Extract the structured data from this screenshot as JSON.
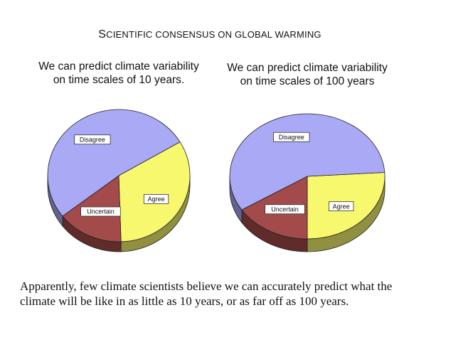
{
  "title_parts": {
    "s_cap": "S",
    "rest": "CIENTIFIC CONSENSUS ON GLOBAL WARMING"
  },
  "caption": "Apparently, few climate scientists believe we can accurately predict what the climate will be like in as little as 10 years, or as far off as 100 years.",
  "colors": {
    "disagree": "#a9a9f6",
    "uncertain": "#a34a4a",
    "agree": "#f8f86e"
  },
  "chart_data": [
    {
      "type": "pie",
      "title": "We can predict climate variability on time scales of 10 years.",
      "labels": [
        "Disagree",
        "Uncertain",
        "Agree"
      ],
      "values": [
        52,
        15,
        33
      ]
    },
    {
      "type": "pie",
      "title": "We can predict climate variability on time scales of 100 years",
      "labels": [
        "Disagree",
        "Uncertain",
        "Agree"
      ],
      "values": [
        58,
        16,
        26
      ]
    }
  ]
}
